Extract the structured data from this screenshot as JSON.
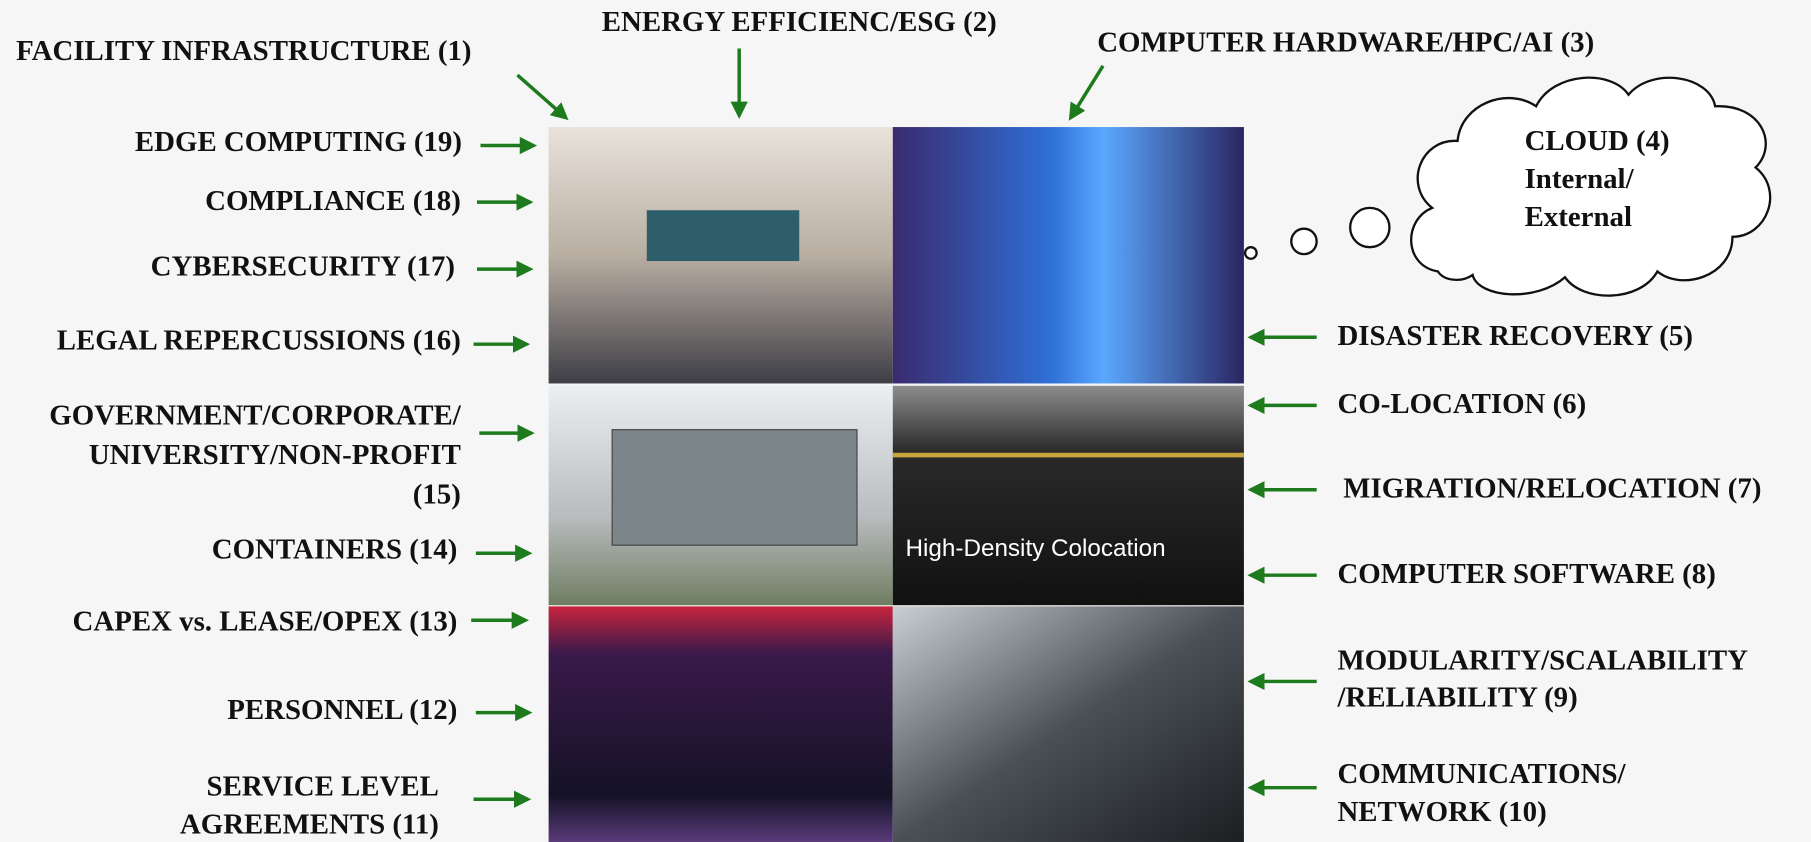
{
  "labels": [
    {
      "lines": [
        "FACILITY INFRASTRUCTURE (1)"
      ]
    },
    {
      "lines": [
        "ENERGY EFFICIENC/ESG (2)"
      ]
    },
    {
      "lines": [
        "COMPUTER HARDWARE/HPC/AI (3)"
      ]
    },
    {
      "lines": [
        "CLOUD (4)",
        "Internal/",
        "External"
      ]
    },
    {
      "lines": [
        "DISASTER RECOVERY (5)"
      ]
    },
    {
      "lines": [
        "CO-LOCATION (6)"
      ]
    },
    {
      "lines": [
        "MIGRATION/RELOCATION (7)"
      ]
    },
    {
      "lines": [
        "COMPUTER SOFTWARE (8)"
      ]
    },
    {
      "lines": [
        "MODULARITY/SCALABILITY",
        "/RELIABILITY (9)"
      ]
    },
    {
      "lines": [
        "COMMUNICATIONS/",
        "NETWORK (10)"
      ]
    },
    {
      "lines": [
        "SERVICE LEVEL",
        "AGREEMENTS (11)"
      ]
    },
    {
      "lines": [
        "PERSONNEL (12)"
      ]
    },
    {
      "lines": [
        "CAPEX vs. LEASE/OPEX (13)"
      ]
    },
    {
      "lines": [
        "CONTAINERS (14)"
      ]
    },
    {
      "lines": [
        "GOVERNMENT/CORPORATE/",
        "UNIVERSITY/NON-PROFIT",
        "(15)"
      ]
    },
    {
      "lines": [
        "LEGAL REPERCUSSIONS (16)"
      ]
    },
    {
      "lines": [
        "CYBERSECURITY (17)"
      ]
    },
    {
      "lines": [
        "COMPLIANCE (18)"
      ]
    },
    {
      "lines": [
        "EDGE COMPUTING (19)"
      ]
    }
  ],
  "photo_caption": "High-Density Colocation"
}
